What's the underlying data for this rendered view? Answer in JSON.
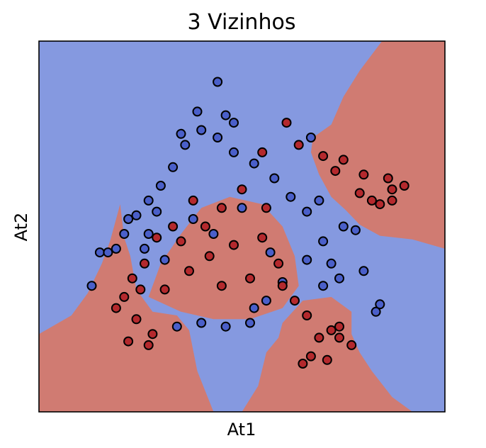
{
  "chart_data": {
    "type": "scatter",
    "title": "3 Vizinhos",
    "xlabel": "At1",
    "ylabel": "At2",
    "xlim": [
      0,
      1
    ],
    "ylim": [
      0,
      1
    ],
    "xticks": [],
    "yticks": [],
    "grid": false,
    "background": "decision regions of a 3-nearest-neighbours classifier over a 2-class point cloud",
    "colors": {
      "region_class_0": "#8599e0",
      "region_class_1": "#d07b72",
      "point_class_0": "#4a5fc9",
      "point_class_1": "#b4292d",
      "point_edge": "#000000",
      "axes_edge": "#000000"
    },
    "regions": [
      {
        "class": 1,
        "polygon": [
          [
            0.845,
            1.0
          ],
          [
            1.0,
            1.0
          ],
          [
            1.0,
            0.44
          ],
          [
            0.92,
            0.465
          ],
          [
            0.84,
            0.475
          ],
          [
            0.79,
            0.505
          ],
          [
            0.755,
            0.545
          ],
          [
            0.72,
            0.58
          ],
          [
            0.69,
            0.64
          ],
          [
            0.67,
            0.7
          ],
          [
            0.675,
            0.74
          ],
          [
            0.72,
            0.775
          ],
          [
            0.75,
            0.85
          ],
          [
            0.79,
            0.92
          ]
        ]
      },
      {
        "class": 1,
        "polygon": [
          [
            0.0,
            0.0
          ],
          [
            0.43,
            0.0
          ],
          [
            0.39,
            0.11
          ],
          [
            0.37,
            0.22
          ],
          [
            0.34,
            0.26
          ],
          [
            0.28,
            0.27
          ],
          [
            0.24,
            0.33
          ],
          [
            0.225,
            0.42
          ],
          [
            0.21,
            0.47
          ],
          [
            0.2,
            0.56
          ],
          [
            0.175,
            0.46
          ],
          [
            0.155,
            0.4
          ],
          [
            0.12,
            0.32
          ],
          [
            0.08,
            0.26
          ],
          [
            0.0,
            0.21
          ]
        ]
      },
      {
        "class": 1,
        "polygon": [
          [
            0.5,
            0.0
          ],
          [
            0.92,
            0.0
          ],
          [
            0.87,
            0.04
          ],
          [
            0.82,
            0.11
          ],
          [
            0.79,
            0.16
          ],
          [
            0.77,
            0.21
          ],
          [
            0.77,
            0.27
          ],
          [
            0.72,
            0.31
          ],
          [
            0.65,
            0.3
          ],
          [
            0.6,
            0.24
          ],
          [
            0.59,
            0.2
          ],
          [
            0.56,
            0.16
          ],
          [
            0.54,
            0.07
          ]
        ]
      },
      {
        "class": 1,
        "polygon": [
          [
            0.27,
            0.31
          ],
          [
            0.3,
            0.4
          ],
          [
            0.35,
            0.48
          ],
          [
            0.4,
            0.55
          ],
          [
            0.47,
            0.58
          ],
          [
            0.55,
            0.56
          ],
          [
            0.6,
            0.5
          ],
          [
            0.63,
            0.42
          ],
          [
            0.64,
            0.34
          ],
          [
            0.6,
            0.28
          ],
          [
            0.52,
            0.25
          ],
          [
            0.43,
            0.25
          ],
          [
            0.35,
            0.27
          ]
        ]
      }
    ],
    "series": [
      {
        "class": 0,
        "points": [
          [
            0.44,
            0.89
          ],
          [
            0.13,
            0.34
          ],
          [
            0.15,
            0.43
          ],
          [
            0.17,
            0.43
          ],
          [
            0.19,
            0.44
          ],
          [
            0.21,
            0.48
          ],
          [
            0.24,
            0.53
          ],
          [
            0.27,
            0.57
          ],
          [
            0.3,
            0.61
          ],
          [
            0.33,
            0.66
          ],
          [
            0.36,
            0.72
          ],
          [
            0.4,
            0.76
          ],
          [
            0.44,
            0.74
          ],
          [
            0.48,
            0.7
          ],
          [
            0.53,
            0.67
          ],
          [
            0.58,
            0.63
          ],
          [
            0.62,
            0.58
          ],
          [
            0.66,
            0.54
          ],
          [
            0.7,
            0.46
          ],
          [
            0.72,
            0.4
          ],
          [
            0.74,
            0.36
          ],
          [
            0.8,
            0.38
          ],
          [
            0.84,
            0.29
          ],
          [
            0.83,
            0.27
          ],
          [
            0.78,
            0.49
          ],
          [
            0.34,
            0.23
          ],
          [
            0.4,
            0.24
          ],
          [
            0.46,
            0.23
          ],
          [
            0.52,
            0.24
          ],
          [
            0.56,
            0.3
          ],
          [
            0.31,
            0.41
          ],
          [
            0.27,
            0.48
          ],
          [
            0.5,
            0.55
          ],
          [
            0.43,
            0.48
          ],
          [
            0.38,
            0.52
          ],
          [
            0.6,
            0.35
          ],
          [
            0.66,
            0.41
          ],
          [
            0.69,
            0.57
          ],
          [
            0.75,
            0.5
          ],
          [
            0.48,
            0.78
          ],
          [
            0.39,
            0.81
          ],
          [
            0.46,
            0.8
          ],
          [
            0.67,
            0.74
          ],
          [
            0.29,
            0.54
          ],
          [
            0.22,
            0.52
          ],
          [
            0.35,
            0.75
          ],
          [
            0.57,
            0.43
          ],
          [
            0.53,
            0.28
          ],
          [
            0.7,
            0.34
          ],
          [
            0.26,
            0.44
          ]
        ]
      },
      {
        "class": 1,
        "points": [
          [
            0.61,
            0.78
          ],
          [
            0.7,
            0.69
          ],
          [
            0.75,
            0.68
          ],
          [
            0.8,
            0.64
          ],
          [
            0.86,
            0.63
          ],
          [
            0.87,
            0.6
          ],
          [
            0.9,
            0.61
          ],
          [
            0.87,
            0.57
          ],
          [
            0.82,
            0.57
          ],
          [
            0.73,
            0.65
          ],
          [
            0.64,
            0.72
          ],
          [
            0.55,
            0.7
          ],
          [
            0.5,
            0.6
          ],
          [
            0.45,
            0.55
          ],
          [
            0.38,
            0.57
          ],
          [
            0.33,
            0.5
          ],
          [
            0.29,
            0.47
          ],
          [
            0.26,
            0.4
          ],
          [
            0.23,
            0.36
          ],
          [
            0.21,
            0.31
          ],
          [
            0.19,
            0.28
          ],
          [
            0.24,
            0.25
          ],
          [
            0.28,
            0.21
          ],
          [
            0.22,
            0.19
          ],
          [
            0.27,
            0.18
          ],
          [
            0.31,
            0.33
          ],
          [
            0.37,
            0.38
          ],
          [
            0.42,
            0.42
          ],
          [
            0.48,
            0.45
          ],
          [
            0.55,
            0.47
          ],
          [
            0.59,
            0.4
          ],
          [
            0.63,
            0.3
          ],
          [
            0.66,
            0.26
          ],
          [
            0.69,
            0.2
          ],
          [
            0.72,
            0.22
          ],
          [
            0.74,
            0.2
          ],
          [
            0.67,
            0.15
          ],
          [
            0.65,
            0.13
          ],
          [
            0.71,
            0.14
          ],
          [
            0.77,
            0.18
          ],
          [
            0.74,
            0.23
          ],
          [
            0.6,
            0.34
          ],
          [
            0.52,
            0.36
          ],
          [
            0.45,
            0.34
          ],
          [
            0.35,
            0.46
          ],
          [
            0.41,
            0.5
          ],
          [
            0.56,
            0.55
          ],
          [
            0.79,
            0.59
          ],
          [
            0.84,
            0.56
          ],
          [
            0.25,
            0.33
          ]
        ]
      }
    ]
  }
}
